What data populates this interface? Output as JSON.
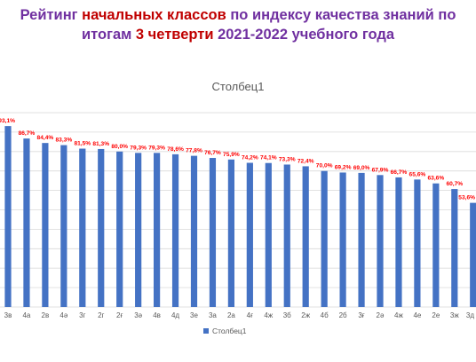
{
  "heading": {
    "line1": [
      {
        "text": "Рейтинг ",
        "color": "#7030A0"
      },
      {
        "text": "начальных классов",
        "color": "#C00000"
      },
      {
        "text": " по индексу качества знаний по",
        "color": "#7030A0"
      }
    ],
    "line2": [
      {
        "text": "итогам ",
        "color": "#7030A0"
      },
      {
        "text": "3 четверти",
        "color": "#C00000"
      },
      {
        "text": "  2021-2022  учебного года",
        "color": "#7030A0"
      }
    ]
  },
  "chart_data": {
    "type": "bar",
    "title": "Столбец1",
    "categories": [
      "3в",
      "4а",
      "2в",
      "4ә",
      "3г",
      "2г",
      "2ғ",
      "3ә",
      "4в",
      "4д",
      "3е",
      "3а",
      "2а",
      "4ғ",
      "4ж",
      "3б",
      "2ж",
      "4б",
      "2б",
      "3ғ",
      "2ә",
      "4ж",
      "4е",
      "2е",
      "3ж",
      "3д"
    ],
    "labels": [
      "93,1%",
      "86,7%",
      "84,4%",
      "83,3%",
      "81,5%",
      "81,3%",
      "80,0%",
      "79,3%",
      "79,3%",
      "78,6%",
      "77,8%",
      "76,7%",
      "75,9%",
      "74,2%",
      "74,1%",
      "73,3%",
      "72,4%",
      "70,0%",
      "69,2%",
      "69,0%",
      "67,9%",
      "66,7%",
      "65,6%",
      "63,6%",
      "60,7%",
      "53,6%"
    ],
    "series": [
      {
        "name": "Столбец1",
        "values": [
          93.1,
          86.7,
          84.4,
          83.3,
          81.5,
          81.3,
          80.0,
          79.3,
          79.3,
          78.6,
          77.8,
          76.7,
          75.9,
          74.2,
          74.1,
          73.3,
          72.4,
          70.0,
          69.2,
          69.0,
          67.9,
          66.7,
          65.6,
          63.6,
          60.7,
          53.6
        ]
      }
    ],
    "ylim": [
      0,
      100
    ],
    "grid": true,
    "legend": "bottom",
    "colors": {
      "bar": "#4472C4",
      "label": "#FF0000",
      "grid": "#D9D9D9",
      "axis_text": "#595959"
    }
  }
}
